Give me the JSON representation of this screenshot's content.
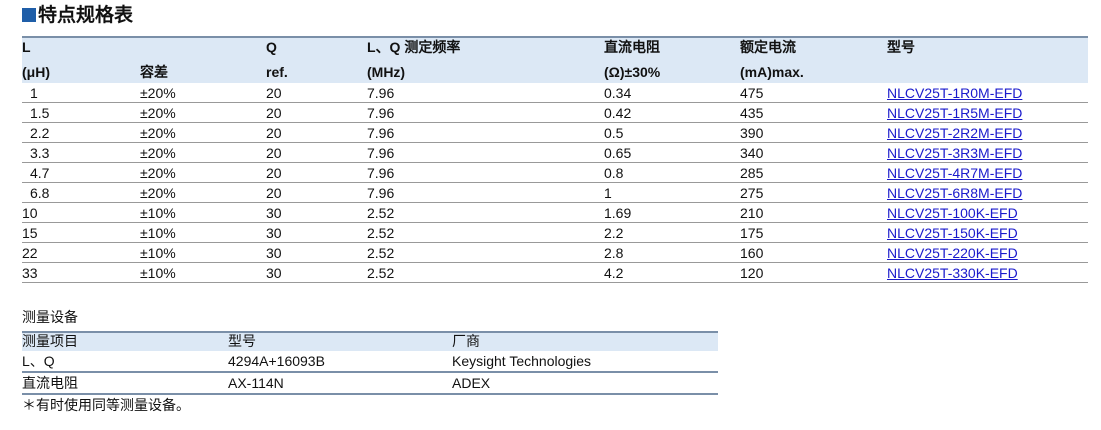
{
  "title": "特点规格表",
  "spec_table": {
    "columns": [
      {
        "line1": "L",
        "line2": "(μH)"
      },
      {
        "line2": "容差"
      },
      {
        "line1": "Q",
        "line2": "ref."
      },
      {
        "line1": "L、Q 测定频率",
        "line2": "(MHz)"
      },
      {
        "line1": "直流电阻",
        "line2": "(Ω)±30%"
      },
      {
        "line1": "额定电流",
        "line2": "(mA)max."
      },
      {
        "line1": "型号"
      }
    ],
    "rows": [
      [
        "1",
        "±20%",
        "20",
        "7.96",
        "0.34",
        "475",
        "NLCV25T-1R0M-EFD"
      ],
      [
        "1.5",
        "±20%",
        "20",
        "7.96",
        "0.42",
        "435",
        "NLCV25T-1R5M-EFD"
      ],
      [
        "2.2",
        "±20%",
        "20",
        "7.96",
        "0.5",
        "390",
        "NLCV25T-2R2M-EFD"
      ],
      [
        "3.3",
        "±20%",
        "20",
        "7.96",
        "0.65",
        "340",
        "NLCV25T-3R3M-EFD"
      ],
      [
        "4.7",
        "±20%",
        "20",
        "7.96",
        "0.8",
        "285",
        "NLCV25T-4R7M-EFD"
      ],
      [
        "6.8",
        "±20%",
        "20",
        "7.96",
        "1",
        "275",
        "NLCV25T-6R8M-EFD"
      ],
      [
        "10",
        "±10%",
        "30",
        "2.52",
        "1.69",
        "210",
        "NLCV25T-100K-EFD"
      ],
      [
        "15",
        "±10%",
        "30",
        "2.52",
        "2.2",
        "175",
        "NLCV25T-150K-EFD"
      ],
      [
        "22",
        "±10%",
        "30",
        "2.52",
        "2.8",
        "160",
        "NLCV25T-220K-EFD"
      ],
      [
        "33",
        "±10%",
        "30",
        "2.52",
        "4.2",
        "120",
        "NLCV25T-330K-EFD"
      ]
    ]
  },
  "equipment": {
    "title": "测量设备",
    "header": [
      "测量项目",
      "型号",
      "厂商"
    ],
    "rows": [
      [
        "L、Q",
        "4294A+16093B",
        "Keysight Technologies"
      ],
      [
        "直流电阻",
        "AX-114N",
        "ADEX"
      ]
    ],
    "note": "＊有时使用同等测量设备。"
  }
}
